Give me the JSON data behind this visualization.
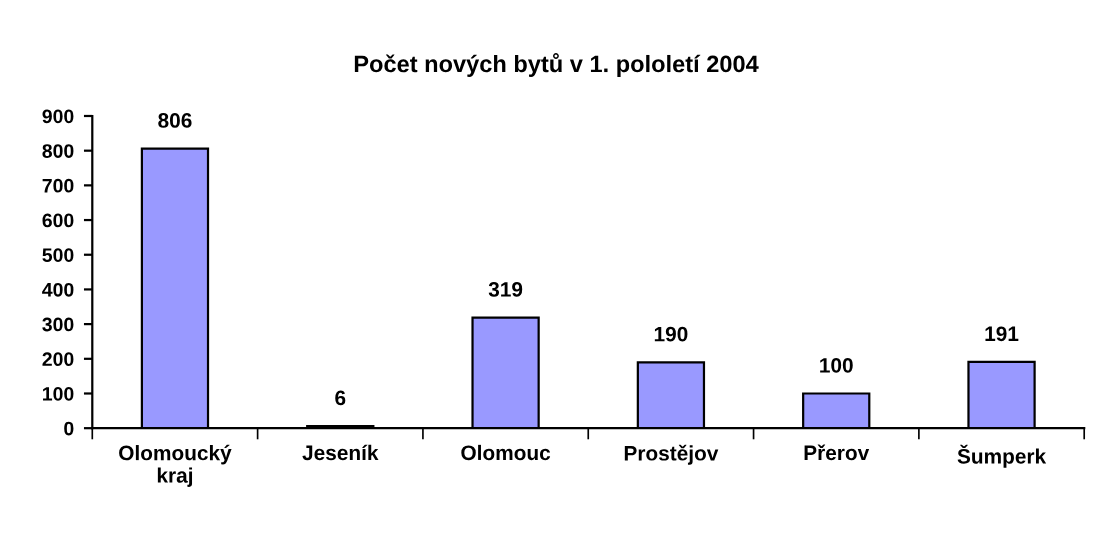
{
  "chart_data": {
    "type": "bar",
    "title": "Počet nových bytů v 1. pololetí 2004",
    "categories": [
      "Olomoucký\nkraj",
      "Jeseník",
      "Olomouc",
      "Prostějov",
      "Přerov",
      "Šumperk"
    ],
    "values": [
      806,
      6,
      319,
      190,
      100,
      191
    ],
    "color": "#9999ff",
    "ylim": [
      0,
      900
    ],
    "yticks": [
      0,
      100,
      200,
      300,
      400,
      500,
      600,
      700,
      800,
      900
    ],
    "grid": false,
    "legend": false,
    "data_labels": true
  }
}
